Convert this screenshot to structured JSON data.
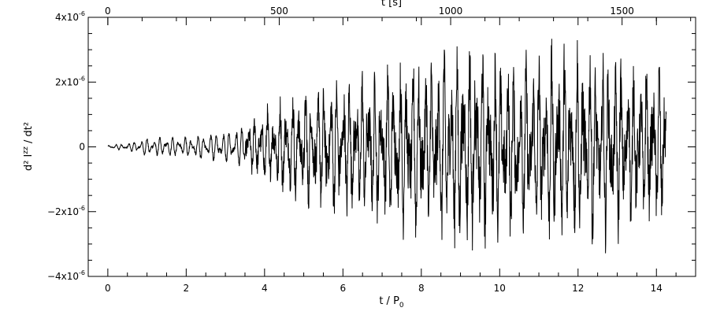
{
  "chart_data": {
    "type": "line",
    "xlabel_bottom": "t / P",
    "xlabel_bottom_sub": "0",
    "xlabel_top": "t [s]",
    "ylabel_main": "d² I",
    "ylabel_sup": "zz",
    "ylabel_rest": " / dt²",
    "xlim_bottom": [
      -0.5,
      15
    ],
    "xlim_top_note": "top axis = bottom axis × 114.3 s",
    "ylim": [
      -4e-06,
      4e-06
    ],
    "x_ticks_bottom": [
      "0",
      "2",
      "4",
      "6",
      "8",
      "10",
      "12",
      "14"
    ],
    "x_ticks_bottom_values": [
      0,
      2,
      4,
      6,
      8,
      10,
      12,
      14
    ],
    "x_ticks_top": [
      "0",
      "500",
      "1000",
      "1500"
    ],
    "x_ticks_top_values": [
      0,
      500,
      1000,
      1500
    ],
    "y_ticks": [
      {
        "base": "4x10",
        "exp": "-6",
        "value": 4e-06
      },
      {
        "base": "2x10",
        "exp": "-6",
        "value": 2e-06
      },
      {
        "base": "0",
        "exp": "",
        "value": 0
      },
      {
        "base": "−2x10",
        "exp": "-6",
        "value": -2e-06
      },
      {
        "base": "−4x10",
        "exp": "-6",
        "value": -4e-06
      }
    ],
    "series": [
      {
        "x_start": 0.0,
        "x_end": 14.25,
        "envelope": [
          [
            0.0,
            5e-08
          ],
          [
            0.5,
            1e-07
          ],
          [
            1.0,
            2.5e-07
          ],
          [
            2.0,
            3e-07
          ],
          [
            3.0,
            4.5e-07
          ],
          [
            3.5,
            6e-07
          ],
          [
            4.0,
            9e-07
          ],
          [
            4.5,
            1.2e-06
          ],
          [
            5.0,
            1.5e-06
          ],
          [
            6.0,
            1.7e-06
          ],
          [
            7.0,
            1.9e-06
          ],
          [
            8.0,
            2.2e-06
          ],
          [
            9.0,
            2.6e-06
          ],
          [
            10.0,
            2.3e-06
          ],
          [
            11.0,
            2.3e-06
          ],
          [
            12.0,
            2.5e-06
          ],
          [
            13.0,
            2.2e-06
          ],
          [
            14.25,
            2e-06
          ]
        ]
      }
    ]
  }
}
